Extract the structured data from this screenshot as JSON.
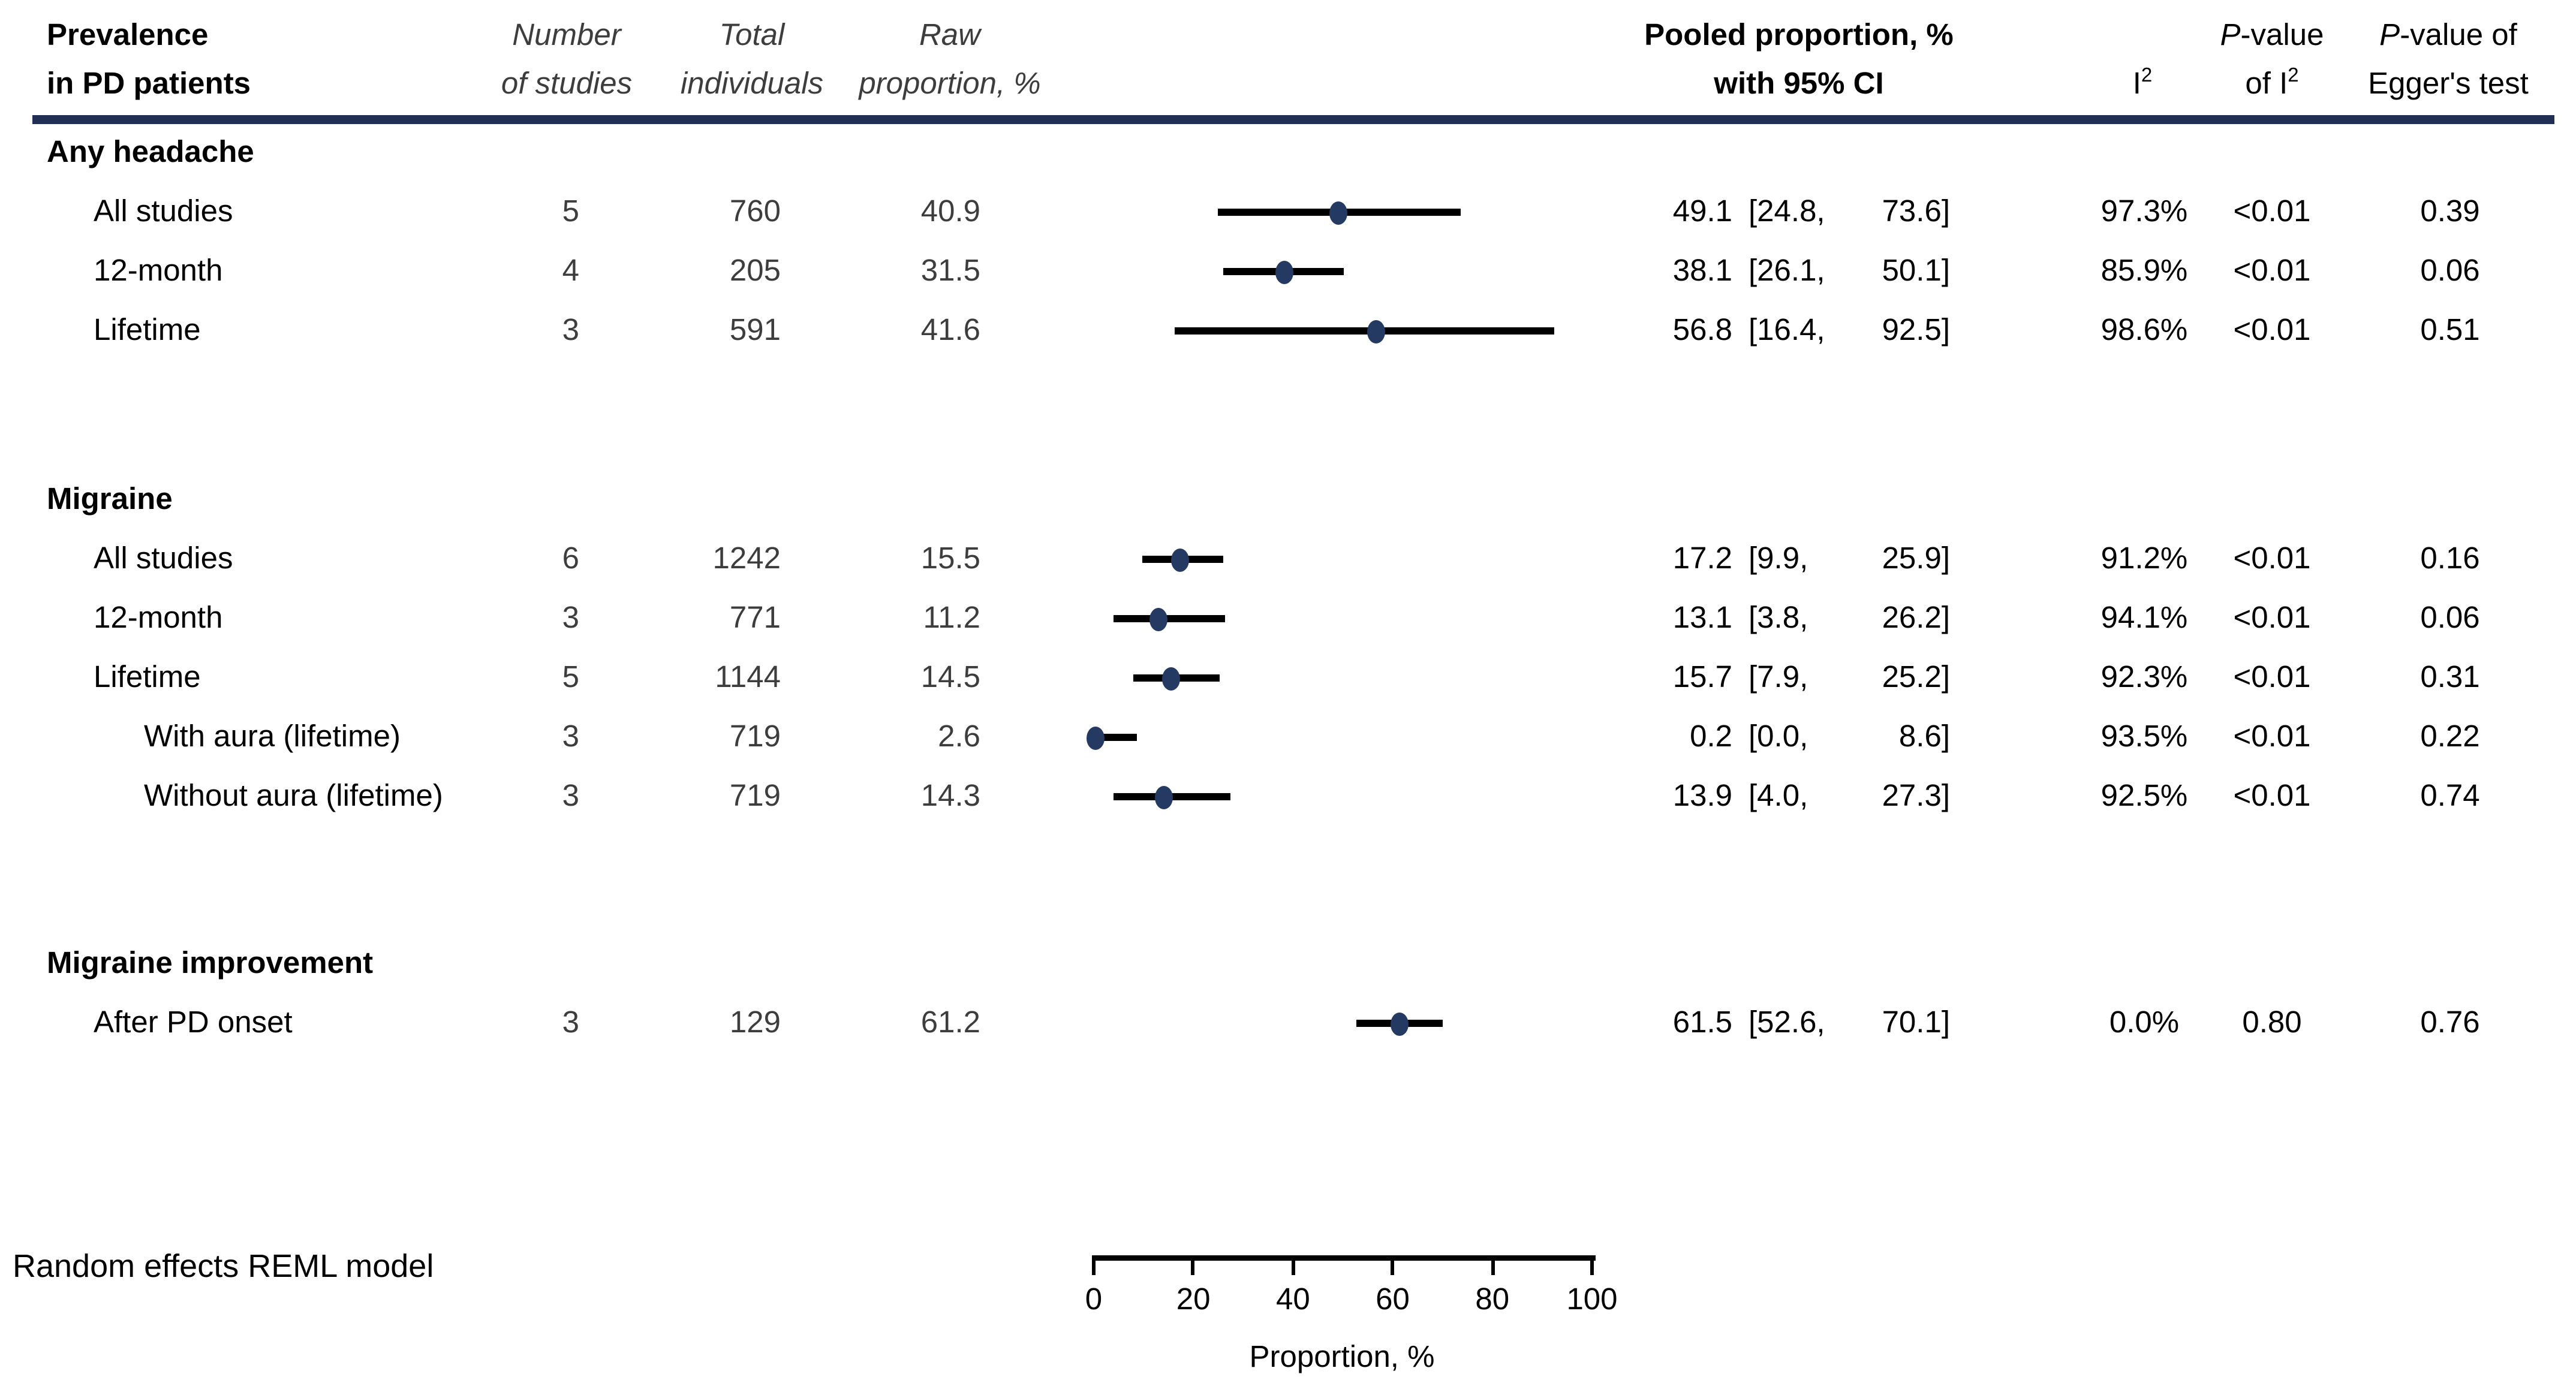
{
  "header": {
    "stub": {
      "line1": "Prevalence",
      "line2": "in PD patients"
    },
    "n_studies": {
      "line1": "Number",
      "line2": "of studies"
    },
    "total": {
      "line1": "Total",
      "line2": "individuals"
    },
    "raw": {
      "line1": "Raw",
      "line2": "proportion, %"
    },
    "pooled": {
      "line1": "Pooled proportion, %",
      "line2": "with 95% CI"
    },
    "i2": {
      "base": "I",
      "sup": "2"
    },
    "p_i2": {
      "p": "P",
      "rest": "-value",
      "line2_base": "of I",
      "line2_sup": "2"
    },
    "egger": {
      "p": "P",
      "rest": "-value of",
      "line2": "Egger's test"
    }
  },
  "footnote": "Random effects REML model",
  "colors": {
    "rule": "#222f55",
    "marker": "#253a63",
    "ci_line": "#000000",
    "muted_text": "#3d3d3d"
  },
  "chart_data": {
    "type": "scatter",
    "subtype": "forest-plot",
    "title": "Prevalence in PD patients",
    "xlabel": "Proportion, %",
    "xlim": [
      0,
      100
    ],
    "xticks": [
      0,
      20,
      40,
      60,
      80,
      100
    ],
    "grid": false,
    "note": "Random effects REML model",
    "sections": [
      {
        "name": "Any headache",
        "rows": [
          {
            "label": "All studies",
            "sub": false,
            "n_studies": "5",
            "total": "760",
            "raw": "40.9",
            "pooled": 49.1,
            "ci_lo": 24.8,
            "ci_hi": 73.6,
            "pooled_text": "49.1",
            "ci_lo_text": "24.8",
            "ci_hi_text": "73.6",
            "i2": "97.3%",
            "p_i2": "<0.01",
            "p_egger": "0.39"
          },
          {
            "label": "12-month",
            "sub": false,
            "n_studies": "4",
            "total": "205",
            "raw": "31.5",
            "pooled": 38.1,
            "ci_lo": 26.1,
            "ci_hi": 50.1,
            "pooled_text": "38.1",
            "ci_lo_text": "26.1",
            "ci_hi_text": "50.1",
            "i2": "85.9%",
            "p_i2": "<0.01",
            "p_egger": "0.06"
          },
          {
            "label": "Lifetime",
            "sub": false,
            "n_studies": "3",
            "total": "591",
            "raw": "41.6",
            "pooled": 56.8,
            "ci_lo": 16.4,
            "ci_hi": 92.5,
            "pooled_text": "56.8",
            "ci_lo_text": "16.4",
            "ci_hi_text": "92.5",
            "i2": "98.6%",
            "p_i2": "<0.01",
            "p_egger": "0.51"
          }
        ]
      },
      {
        "name": "Migraine",
        "rows": [
          {
            "label": "All studies",
            "sub": false,
            "n_studies": "6",
            "total": "1242",
            "raw": "15.5",
            "pooled": 17.2,
            "ci_lo": 9.9,
            "ci_hi": 25.9,
            "pooled_text": "17.2",
            "ci_lo_text": "9.9",
            "ci_hi_text": "25.9",
            "i2": "91.2%",
            "p_i2": "<0.01",
            "p_egger": "0.16"
          },
          {
            "label": "12-month",
            "sub": false,
            "n_studies": "3",
            "total": "771",
            "raw": "11.2",
            "pooled": 13.1,
            "ci_lo": 3.8,
            "ci_hi": 26.2,
            "pooled_text": "13.1",
            "ci_lo_text": "3.8",
            "ci_hi_text": "26.2",
            "i2": "94.1%",
            "p_i2": "<0.01",
            "p_egger": "0.06"
          },
          {
            "label": "Lifetime",
            "sub": false,
            "n_studies": "5",
            "total": "1144",
            "raw": "14.5",
            "pooled": 15.7,
            "ci_lo": 7.9,
            "ci_hi": 25.2,
            "pooled_text": "15.7",
            "ci_lo_text": "7.9",
            "ci_hi_text": "25.2",
            "i2": "92.3%",
            "p_i2": "<0.01",
            "p_egger": "0.31"
          },
          {
            "label": "With aura (lifetime)",
            "sub": true,
            "n_studies": "3",
            "total": "719",
            "raw": "2.6",
            "pooled": 0.2,
            "ci_lo": 0.0,
            "ci_hi": 8.6,
            "pooled_text": "0.2",
            "ci_lo_text": "0.0",
            "ci_hi_text": "8.6",
            "i2": "93.5%",
            "p_i2": "<0.01",
            "p_egger": "0.22"
          },
          {
            "label": "Without aura (lifetime)",
            "sub": true,
            "n_studies": "3",
            "total": "719",
            "raw": "14.3",
            "pooled": 13.9,
            "ci_lo": 4.0,
            "ci_hi": 27.3,
            "pooled_text": "13.9",
            "ci_lo_text": "4.0",
            "ci_hi_text": "27.3",
            "i2": "92.5%",
            "p_i2": "<0.01",
            "p_egger": "0.74"
          }
        ]
      },
      {
        "name": "Migraine improvement",
        "rows": [
          {
            "label": "After PD onset",
            "sub": false,
            "n_studies": "3",
            "total": "129",
            "raw": "61.2",
            "pooled": 61.5,
            "ci_lo": 52.6,
            "ci_hi": 70.1,
            "pooled_text": "61.5",
            "ci_lo_text": "52.6",
            "ci_hi_text": "70.1",
            "i2": "0.0%",
            "p_i2": "0.80",
            "p_egger": "0.76"
          }
        ]
      }
    ]
  }
}
